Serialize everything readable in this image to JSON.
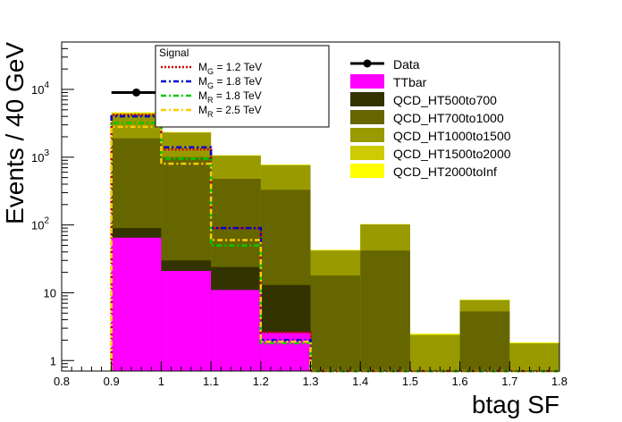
{
  "chart_data": {
    "type": "bar",
    "stacked": true,
    "log_y": true,
    "xlabel": "btag SF",
    "ylabel": "Events / 40 GeV",
    "xlim": [
      0.8,
      1.8
    ],
    "ylim": [
      0.7,
      50000
    ],
    "x_ticks": [
      {
        "v": 0.8,
        "label": "0.8"
      },
      {
        "v": 0.9,
        "label": "0.9"
      },
      {
        "v": 1.0,
        "label": "1"
      },
      {
        "v": 1.1,
        "label": "1.1"
      },
      {
        "v": 1.2,
        "label": "1.2"
      },
      {
        "v": 1.3,
        "label": "1.3"
      },
      {
        "v": 1.4,
        "label": "1.4"
      },
      {
        "v": 1.5,
        "label": "1.5"
      },
      {
        "v": 1.6,
        "label": "1.6"
      },
      {
        "v": 1.7,
        "label": "1.7"
      },
      {
        "v": 1.8,
        "label": "1.8"
      }
    ],
    "y_ticks": [
      {
        "v": 1,
        "base": "1",
        "exp": ""
      },
      {
        "v": 10,
        "base": "10",
        "exp": ""
      },
      {
        "v": 100,
        "base": "10",
        "exp": "2"
      },
      {
        "v": 1000,
        "base": "10",
        "exp": "3"
      },
      {
        "v": 10000,
        "base": "10",
        "exp": "4"
      }
    ],
    "bin_edges": [
      0.9,
      1.0,
      1.1,
      1.2,
      1.3,
      1.4,
      1.5,
      1.6,
      1.7,
      1.8
    ],
    "stack_tops": [
      {
        "name": "TTbar",
        "color": "#ff00ff",
        "values": [
          65,
          21,
          11,
          2.6,
          0,
          0,
          0,
          0,
          0
        ]
      },
      {
        "name": "QCD_HT500to700",
        "color": "#333300",
        "values": [
          90,
          30,
          24,
          13,
          0,
          0,
          0,
          0,
          0
        ]
      },
      {
        "name": "QCD_HT700to1000",
        "color": "#666600",
        "values": [
          1900,
          1000,
          480,
          330,
          18,
          42,
          0,
          5.3,
          0
        ]
      },
      {
        "name": "QCD_HT1000to1500",
        "color": "#999900",
        "values": [
          4300,
          2300,
          1050,
          760,
          42,
          102,
          2.4,
          7.8,
          1.8
        ]
      },
      {
        "name": "QCD_HT1500to2000",
        "color": "#cccc00",
        "values": [
          4500,
          2330,
          1060,
          770,
          42,
          102,
          2.4,
          7.8,
          1.8
        ]
      },
      {
        "name": "QCD_HT2000toInf",
        "color": "#ffff00",
        "values": [
          4600,
          2350,
          1070,
          780,
          43,
          103,
          2.5,
          7.9,
          1.85
        ]
      }
    ],
    "data_points": [
      {
        "x": 0.95,
        "y": 9000,
        "xerr": 0.05
      }
    ],
    "signals": [
      {
        "name": "M_G = 1.2 TeV",
        "color": "#cc0000",
        "dash": "2,2",
        "values": [
          4200,
          1300,
          90,
          2.6,
          0,
          0,
          0,
          0,
          0
        ]
      },
      {
        "name": "M_G = 1.8 TeV",
        "color": "#0000cc",
        "dash": "6,3,2,3",
        "values": [
          4000,
          1400,
          90,
          2.0,
          0,
          0,
          0,
          0,
          0
        ]
      },
      {
        "name": "M_R = 1.8 TeV",
        "color": "#00cc00",
        "dash": "6,3,2,3",
        "values": [
          3200,
          950,
          50,
          1.8,
          0,
          0,
          0,
          0,
          0
        ]
      },
      {
        "name": "M_R = 2.5 TeV",
        "color": "#ffcc00",
        "dash": "6,3,2,3",
        "values": [
          2800,
          800,
          60,
          1.9,
          0,
          0,
          0,
          0,
          0
        ]
      }
    ],
    "signal_legend": {
      "title": "Signal",
      "entries": [
        {
          "main": "M",
          "sub": "G",
          "rest": " = 1.2 TeV",
          "color": "#cc0000",
          "dash": "2,2"
        },
        {
          "main": "M",
          "sub": "G",
          "rest": " = 1.8 TeV",
          "color": "#0000cc",
          "dash": "6,3,2,3"
        },
        {
          "main": "M",
          "sub": "R",
          "rest": " = 1.8 TeV",
          "color": "#00cc00",
          "dash": "6,3,2,3"
        },
        {
          "main": "M",
          "sub": "R",
          "rest": " = 2.5 TeV",
          "color": "#ffcc00",
          "dash": "6,3,2,3"
        }
      ]
    },
    "bg_legend": [
      {
        "label": "Data",
        "kind": "marker",
        "color": "#000000"
      },
      {
        "label": "TTbar",
        "kind": "box",
        "color": "#ff00ff"
      },
      {
        "label": "QCD_HT500to700",
        "kind": "box",
        "color": "#333300"
      },
      {
        "label": "QCD_HT700to1000",
        "kind": "box",
        "color": "#666600"
      },
      {
        "label": "QCD_HT1000to1500",
        "kind": "box",
        "color": "#999900"
      },
      {
        "label": "QCD_HT1500to2000",
        "kind": "box",
        "color": "#cccc00"
      },
      {
        "label": "QCD_HT2000toInf",
        "kind": "box",
        "color": "#ffff00"
      }
    ]
  }
}
